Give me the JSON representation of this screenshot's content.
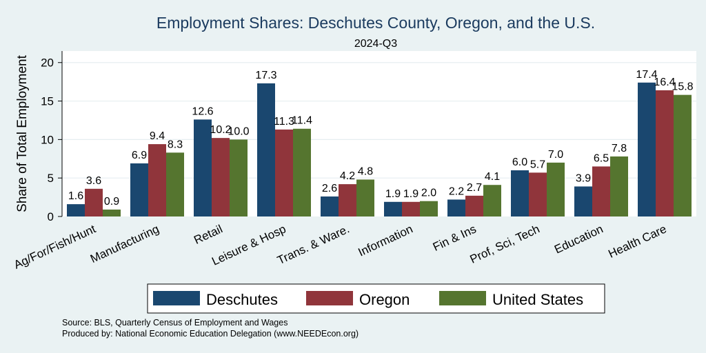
{
  "chart_data": {
    "type": "bar",
    "title": "Employment Shares: Deschutes County, Oregon, and the U.S.",
    "subtitle": "2024-Q3",
    "ylabel": "Share of Total Employment",
    "xlabel": "",
    "ylim": [
      0,
      21.5
    ],
    "yticks": [
      0,
      5,
      10,
      15,
      20
    ],
    "grid": true,
    "legend_position": "bottom",
    "categories": [
      "Ag/For/Fish/Hunt",
      "Manufacturing",
      "Retail",
      "Leisure & Hosp",
      "Trans. & Ware.",
      "Information",
      "Fin & Ins",
      "Prof, Sci, Tech",
      "Education",
      "Health Care"
    ],
    "series": [
      {
        "name": "Deschutes",
        "color": "#1a476f",
        "values": [
          1.6,
          6.9,
          12.6,
          17.3,
          2.6,
          1.9,
          2.2,
          6.0,
          3.9,
          17.4
        ],
        "labels": [
          "1.6",
          "6.9",
          "12.6",
          "17.3",
          "2.6",
          "1.9",
          "2.2",
          "6.0",
          "3.9",
          "17.4"
        ]
      },
      {
        "name": "Oregon",
        "color": "#90353b",
        "values": [
          3.6,
          9.4,
          10.2,
          11.3,
          4.2,
          1.9,
          2.7,
          5.7,
          6.5,
          16.4
        ],
        "labels": [
          "3.6",
          "9.4",
          "10.2",
          "11.3",
          "4.2",
          "1.9",
          "2.7",
          "5.7",
          "6.5",
          "16.4"
        ]
      },
      {
        "name": "United States",
        "color": "#55752f",
        "values": [
          0.9,
          8.3,
          10.0,
          11.4,
          4.8,
          2.0,
          4.1,
          7.0,
          7.8,
          15.8
        ],
        "labels": [
          "0.9",
          "8.3",
          "10.0",
          "11.4",
          "4.8",
          "2.0",
          "4.1",
          "7.0",
          "7.8",
          "15.8"
        ]
      }
    ]
  },
  "notes": {
    "source": "Source: BLS, Quarterly Census of Employment and Wages",
    "produced": "Produced by: National Economic Education Delegation (www.NEEDEcon.org)"
  }
}
